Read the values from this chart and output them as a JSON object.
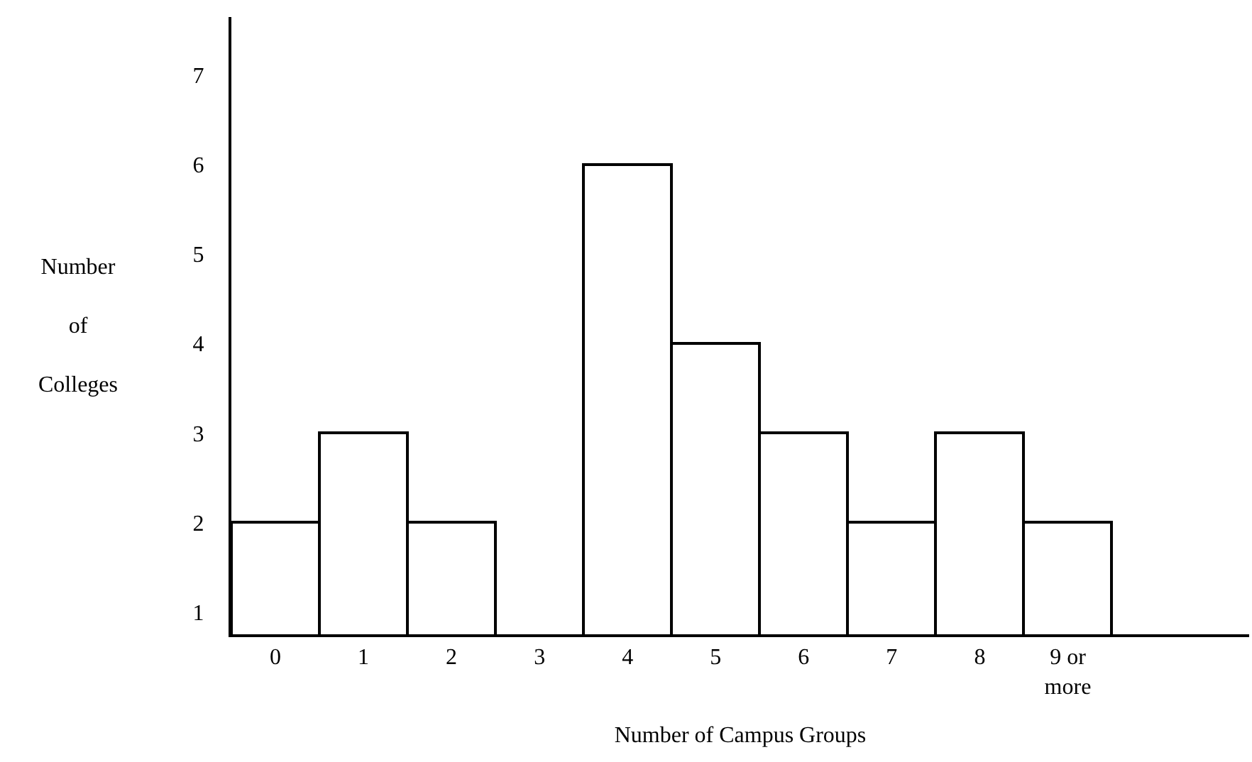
{
  "chart_data": {
    "type": "bar",
    "xlabel": "Number of Campus Groups",
    "ylabel": "Number\nof\nColleges",
    "categories": [
      "0",
      "1",
      "2",
      "3",
      "4",
      "5",
      "6",
      "7",
      "8",
      "9 or\nmore"
    ],
    "values": [
      2,
      3,
      2,
      null,
      6,
      4,
      3,
      2,
      3,
      2
    ],
    "color": "#ffffff",
    "ylim": [
      0.75,
      7.65
    ],
    "yticks": [
      1,
      2,
      3,
      4,
      5,
      6,
      7
    ]
  }
}
